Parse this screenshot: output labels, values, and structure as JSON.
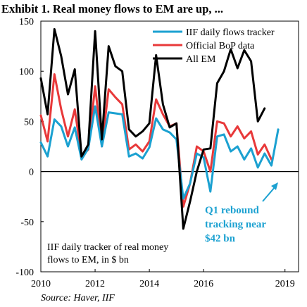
{
  "chart_data": {
    "type": "line",
    "title": "Exhibit 1. Real money flows to EM are up, ...",
    "source": "Source: Haver, IIF",
    "ylim": [
      -100,
      150
    ],
    "xlim": [
      2010,
      2019.5
    ],
    "yticks": [
      -100,
      -50,
      0,
      50,
      100,
      150
    ],
    "xticks": [
      2010,
      2012,
      2014,
      2016,
      2019
    ],
    "xtick_labels": [
      "2010",
      "2012",
      "2014",
      "2016",
      "2019"
    ],
    "grid": false,
    "legend_position": "top-right",
    "annotation": {
      "lines": [
        "IIF daily tracker of real money",
        "flows to EM, in $ bn"
      ]
    },
    "callout": {
      "lines": [
        "Q1 rebound",
        "tracking near",
        "$42 bn"
      ]
    },
    "series": [
      {
        "name": "IIF daily flows tracker",
        "color": "#1ba1d1",
        "x": [
          2010.0,
          2010.25,
          2010.5,
          2010.75,
          2011.0,
          2011.25,
          2011.5,
          2011.75,
          2012.0,
          2012.25,
          2012.5,
          2012.75,
          2013.0,
          2013.25,
          2013.5,
          2013.75,
          2014.0,
          2014.25,
          2014.5,
          2014.75,
          2015.0,
          2015.25,
          2015.5,
          2015.75,
          2016.0,
          2016.25,
          2016.5,
          2016.75,
          2017.0,
          2017.25,
          2017.5,
          2017.75,
          2018.0,
          2018.25,
          2018.5,
          2018.75
        ],
        "y": [
          29,
          15,
          52,
          45,
          25,
          44,
          12,
          23,
          65,
          25,
          59,
          58,
          57,
          15,
          18,
          13,
          24,
          53,
          42,
          39,
          32,
          -27,
          -12,
          18,
          14,
          -20,
          35,
          37,
          20,
          25,
          12,
          23,
          4,
          18,
          6,
          42
        ]
      },
      {
        "name": "Official BoP data",
        "color": "#e8393a",
        "x": [
          2010.0,
          2010.25,
          2010.5,
          2010.75,
          2011.0,
          2011.25,
          2011.5,
          2011.75,
          2012.0,
          2012.25,
          2012.5,
          2012.75,
          2013.0,
          2013.25,
          2013.5,
          2013.75,
          2014.0,
          2014.25,
          2014.5,
          2014.75,
          2015.0,
          2015.25,
          2015.5,
          2015.75,
          2016.0,
          2016.25,
          2016.5,
          2016.75,
          2017.0,
          2017.25,
          2017.5,
          2017.75,
          2018.0,
          2018.25,
          2018.5
        ],
        "y": [
          56,
          30,
          97,
          62,
          35,
          62,
          15,
          22,
          85,
          25,
          82,
          74,
          67,
          22,
          27,
          20,
          30,
          72,
          57,
          45,
          48,
          -35,
          -12,
          25,
          20,
          0,
          50,
          48,
          35,
          45,
          33,
          40,
          17,
          27,
          12
        ]
      },
      {
        "name": "All EM",
        "color": "#000000",
        "x": [
          2010.0,
          2010.25,
          2010.5,
          2010.75,
          2011.0,
          2011.25,
          2011.5,
          2011.75,
          2012.0,
          2012.25,
          2012.5,
          2012.75,
          2013.0,
          2013.25,
          2013.5,
          2013.75,
          2014.0,
          2014.25,
          2014.5,
          2014.75,
          2015.0,
          2015.25,
          2015.5,
          2015.75,
          2016.0,
          2016.25,
          2016.5,
          2016.75,
          2017.0,
          2017.25,
          2017.5,
          2017.75,
          2018.0,
          2018.25
        ],
        "y": [
          93,
          57,
          142,
          115,
          77,
          102,
          15,
          27,
          140,
          32,
          125,
          105,
          100,
          42,
          35,
          40,
          48,
          116,
          67,
          44,
          48,
          -57,
          -30,
          0,
          22,
          23,
          88,
          100,
          122,
          103,
          121,
          110,
          50,
          63
        ]
      }
    ]
  }
}
